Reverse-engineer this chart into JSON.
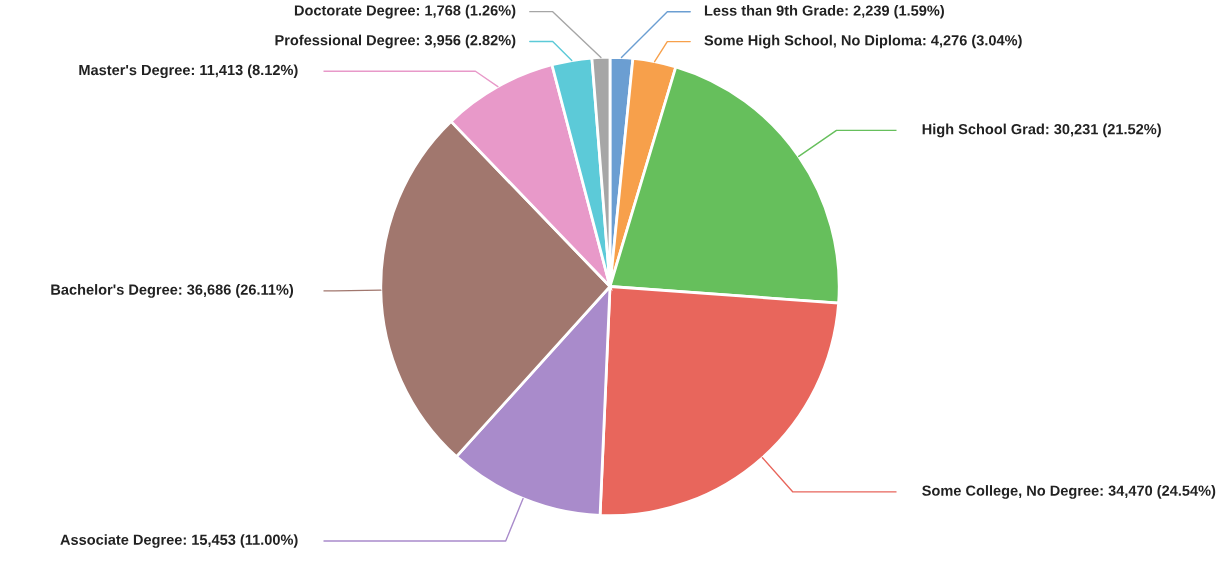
{
  "chart_data": {
    "type": "pie",
    "categories": [
      "Less than 9th Grade",
      "Some High School, No Diploma",
      "High School Grad",
      "Some College, No Degree",
      "Associate Degree",
      "Bachelor's Degree",
      "Master's Degree",
      "Professional Degree",
      "Doctorate Degree"
    ],
    "values": [
      2239,
      4276,
      30231,
      34470,
      15453,
      36686,
      11413,
      3956,
      1768
    ],
    "value_labels": [
      "2,239 (1.59%)",
      "4,276 (3.04%)",
      "30,231 (21.52%)",
      "34,470 (24.54%)",
      "15,453 (11.00%)",
      "36,686 (26.11%)",
      "11,413 (8.12%)",
      "3,956 (2.82%)",
      "1,768 (1.26%)"
    ],
    "colors": [
      "#6b9ed2",
      "#f7a04b",
      "#66bf5c",
      "#e8665c",
      "#a98bcb",
      "#a1776e",
      "#e899c9",
      "#5ccad8",
      "#a6a6a6"
    ],
    "legend": false
  }
}
